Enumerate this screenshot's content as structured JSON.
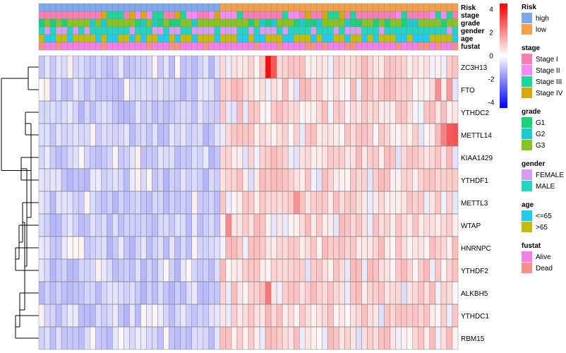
{
  "chart_data": {
    "type": "heatmap",
    "n_samples": 74,
    "n_high": 32,
    "genes": [
      "ZC3H13",
      "FTO",
      "YTHDC2",
      "METTL14",
      "KIAA1429",
      "YTHDF1",
      "METTL3",
      "WTAP",
      "HNRNPC",
      "YTHDF2",
      "ALKBH5",
      "YTHDC1",
      "RBM15"
    ],
    "annotation_tracks": [
      "Risk",
      "stage",
      "grade",
      "gender",
      "age",
      "fustat"
    ],
    "color_scale": {
      "ticks": [
        "4",
        "2",
        "0",
        "-2",
        "-4"
      ],
      "tick_values": [
        4,
        2,
        0,
        -2,
        -4
      ],
      "range": [
        -4.5,
        4.5
      ],
      "low_color": "#0000ff",
      "mid_color": "#ffffff",
      "high_color": "#ff0000"
    },
    "legends": [
      {
        "title": "Risk",
        "items": [
          {
            "label": "high",
            "color": "#7ea8ee"
          },
          {
            "label": "low",
            "color": "#f4a14a"
          }
        ]
      },
      {
        "title": "stage",
        "items": [
          {
            "label": "Stage I",
            "color": "#f57fb4"
          },
          {
            "label": "Stage II",
            "color": "#f58af2"
          },
          {
            "label": "Stage III",
            "color": "#1cd79a"
          },
          {
            "label": "Stage IV",
            "color": "#d8a90c"
          }
        ]
      },
      {
        "title": "grade",
        "items": [
          {
            "label": "G1",
            "color": "#19d178"
          },
          {
            "label": "G2",
            "color": "#1ccad0"
          },
          {
            "label": "G3",
            "color": "#86c521"
          }
        ]
      },
      {
        "title": "gender",
        "items": [
          {
            "label": "FEMALE",
            "color": "#d69df1"
          },
          {
            "label": "MALE",
            "color": "#22d6c3"
          }
        ]
      },
      {
        "title": "age",
        "items": [
          {
            "label": "<=65",
            "color": "#20cbf0"
          },
          {
            "label": ">65",
            "color": "#c3bc0c"
          }
        ]
      },
      {
        "title": "fustat",
        "items": [
          {
            "label": "Alive",
            "color": "#f57fe8"
          },
          {
            "label": "Dead",
            "color": "#f79088"
          }
        ]
      }
    ],
    "highlights": [
      {
        "gene": "ZC3H13",
        "sample": 40,
        "value": 4.3
      },
      {
        "gene": "ZC3H13",
        "sample": 41,
        "value": 3.0
      },
      {
        "gene": "METTL14",
        "sample": 72,
        "value": 3.0
      },
      {
        "gene": "METTL14",
        "sample": 73,
        "value": 3.1
      },
      {
        "gene": "METTL14",
        "sample": 71,
        "value": 2.2
      },
      {
        "gene": "FTO",
        "sample": 70,
        "value": 2.0
      },
      {
        "gene": "FTO",
        "sample": 72,
        "value": 1.8
      },
      {
        "gene": "FTO",
        "sample": 73,
        "value": 1.6
      },
      {
        "gene": "ALKBH5",
        "sample": 40,
        "value": 2.4
      },
      {
        "gene": "WTAP",
        "sample": 33,
        "value": 2.1
      },
      {
        "gene": "METTL3",
        "sample": 45,
        "value": 1.9
      }
    ]
  }
}
